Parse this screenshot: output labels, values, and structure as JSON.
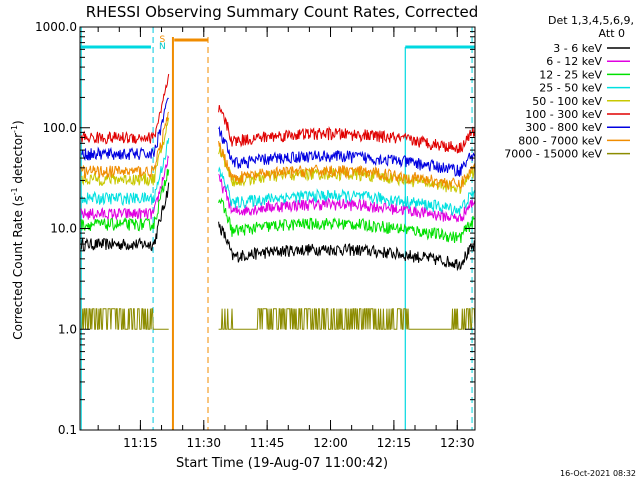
{
  "chart_data": {
    "type": "line",
    "title": "RHESSI Observing Summary Count Rates, Corrected",
    "xlabel": "Start Time (19-Aug-07 11:00:42)",
    "ylabel_main": "Corrected Count Rate (s",
    "ylabel_sup1": "-1",
    "ylabel_mid": " detector",
    "ylabel_sup2": "-1",
    "ylabel_end": ")",
    "yscale": "log",
    "ylim": [
      0.1,
      1000
    ],
    "xlim_minutes": [
      0,
      93.5
    ],
    "x_ticks": [
      {
        "m": 14.3,
        "label": "11:15"
      },
      {
        "m": 29.3,
        "label": "11:30"
      },
      {
        "m": 44.3,
        "label": "11:45"
      },
      {
        "m": 59.3,
        "label": "12:00"
      },
      {
        "m": 74.3,
        "label": "12:15"
      },
      {
        "m": 89.3,
        "label": "12:30"
      }
    ],
    "y_ticks": [
      {
        "v": 0.1,
        "label": "0.1"
      },
      {
        "v": 1,
        "label": "1.0"
      },
      {
        "v": 10,
        "label": "10.0"
      },
      {
        "v": 100,
        "label": "100.0"
      },
      {
        "v": 1000,
        "label": "1000.0"
      }
    ],
    "legend_header": "Det 1,3,4,5,6,9,",
    "legend_header2": "Att 0",
    "series": [
      {
        "name": "3 - 6 keV",
        "color": "#000000",
        "level_pre": 7,
        "level_mid": 5,
        "level_post": 7
      },
      {
        "name": "6 - 12 keV",
        "color": "#e000e0",
        "level_pre": 14,
        "level_mid": 14,
        "level_post": 14
      },
      {
        "name": "12 - 25 keV",
        "color": "#00e000",
        "level_pre": 11,
        "level_mid": 9,
        "level_post": 11
      },
      {
        "name": "25 - 50 keV",
        "color": "#00e0e0",
        "level_pre": 20,
        "level_mid": 17,
        "level_post": 20
      },
      {
        "name": "50 - 100 keV",
        "color": "#c8c800",
        "level_pre": 31,
        "level_mid": 28,
        "level_post": 31
      },
      {
        "name": "100 - 300 keV",
        "color": "#e00000",
        "level_pre": 80,
        "level_mid": 70,
        "level_post": 80
      },
      {
        "name": "300 - 800 keV",
        "color": "#0000e0",
        "level_pre": 55,
        "level_mid": 42,
        "level_post": 50
      },
      {
        "name": "800 - 7000 keV",
        "color": "#f08c00",
        "level_pre": 37,
        "level_mid": 30,
        "level_post": 35
      },
      {
        "name": "7000 - 15000 keV",
        "color": "#8c8c00",
        "level_pre": 1.6,
        "level_mid": 1.0,
        "level_post": 1.6
      }
    ],
    "event_markers": [
      {
        "label": "S",
        "color": "#f08c00"
      },
      {
        "label": "N",
        "color": "#00c8c8"
      }
    ],
    "timestamp": "16-Oct-2021 08:32"
  }
}
